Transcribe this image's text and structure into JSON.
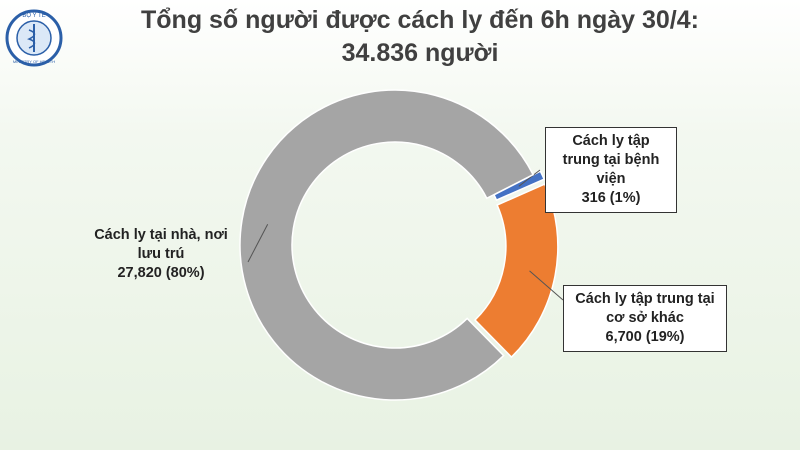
{
  "logo": {
    "top": "BỘ Y TẾ",
    "bottom": "MINISTRY OF HEALTH"
  },
  "chart_data": {
    "type": "pie",
    "donut": true,
    "title": "Tổng số người được cách ly đến 6h ngày 30/4: 34.836 người",
    "categories": [
      "Cách ly tập trung tại bệnh viện",
      "Cách ly tập trung tại cơ sở khác",
      "Cách ly tại nhà, nơi lưu trú"
    ],
    "values": [
      316,
      6700,
      27820
    ],
    "value_labels": [
      "316  (1%)",
      "6,700  (19%)",
      "27,820 (80%)"
    ],
    "colors": [
      "#4472c4",
      "#ed7d31",
      "#a5a5a5"
    ]
  }
}
